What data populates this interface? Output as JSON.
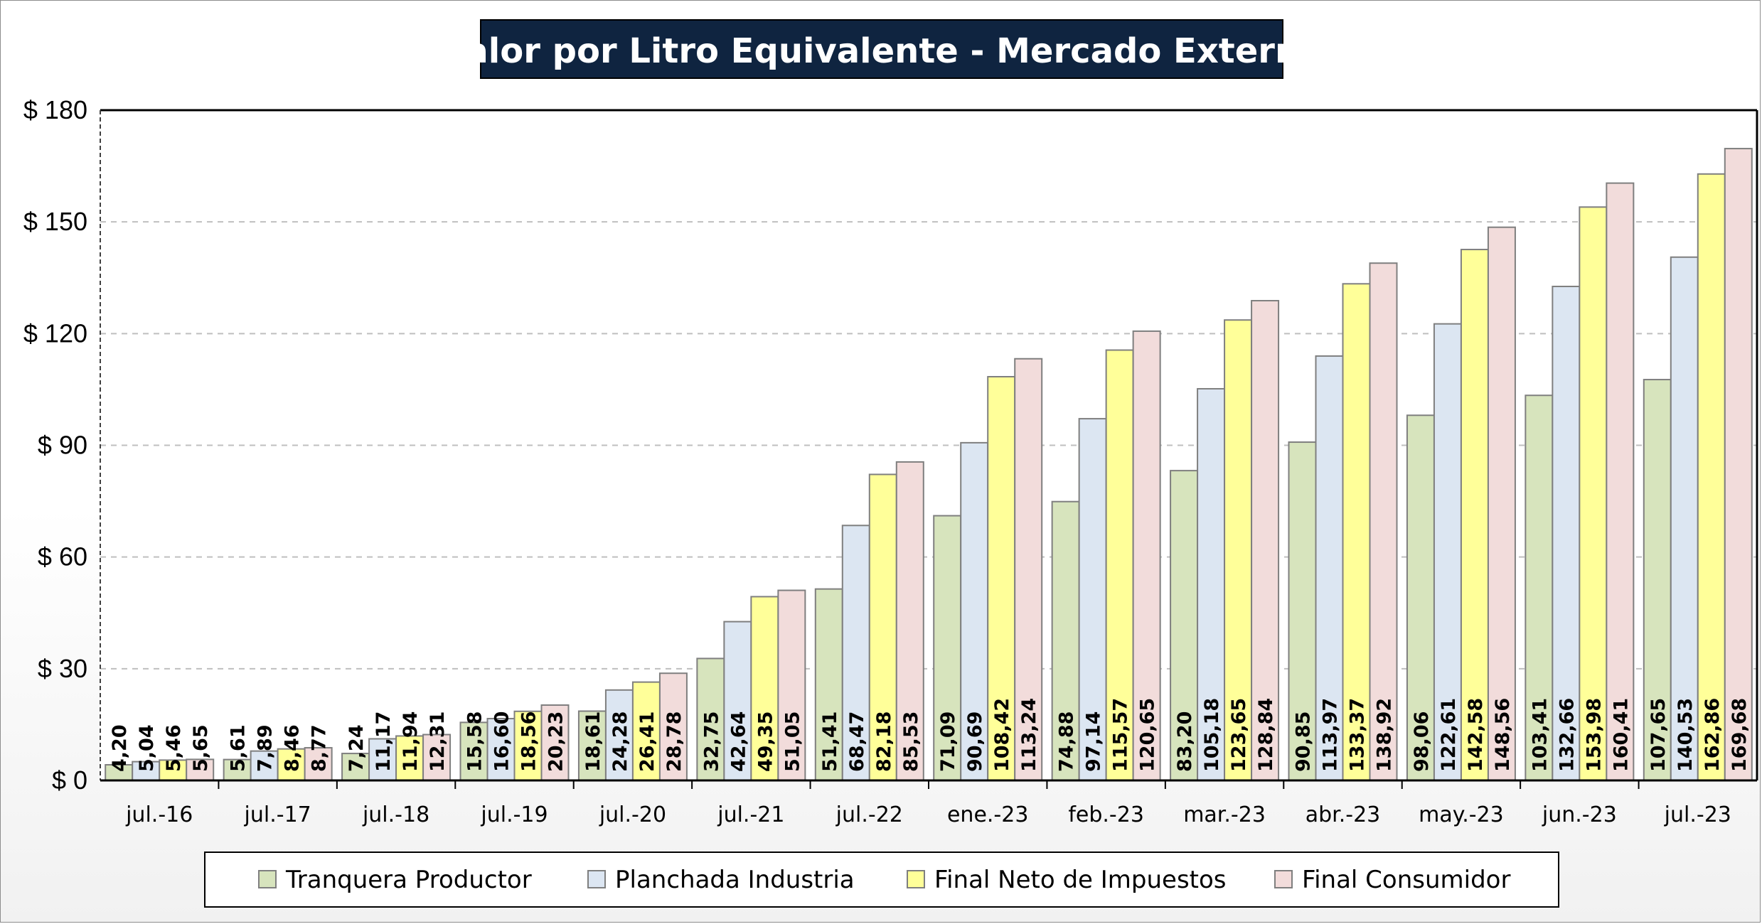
{
  "chart_data": {
    "type": "bar",
    "title": "Valor por Litro Equivalente - Mercado Externo",
    "categories": [
      "jul.-16",
      "jul.-17",
      "jul.-18",
      "jul.-19",
      "jul.-20",
      "jul.-21",
      "jul.-22",
      "ene.-23",
      "feb.-23",
      "mar.-23",
      "abr.-23",
      "may.-23",
      "jun.-23",
      "jul.-23"
    ],
    "series": [
      {
        "name": "Tranquera Productor",
        "color": "#d7e4bd",
        "values": [
          4.2,
          5.61,
          7.24,
          15.58,
          18.61,
          32.75,
          51.41,
          71.09,
          74.88,
          83.2,
          90.85,
          98.06,
          103.41,
          107.65
        ],
        "labels": [
          "4,20",
          "5,61",
          "7,24",
          "15,58",
          "18,61",
          "32,75",
          "51,41",
          "71,09",
          "74,88",
          "83,20",
          "90,85",
          "98,06",
          "103,41",
          "107,65"
        ]
      },
      {
        "name": "Planchada Industria",
        "color": "#dce6f2",
        "values": [
          5.04,
          7.89,
          11.17,
          16.6,
          24.28,
          42.64,
          68.47,
          90.69,
          97.14,
          105.18,
          113.97,
          122.61,
          132.66,
          140.53
        ],
        "labels": [
          "5,04",
          "7,89",
          "11,17",
          "16,60",
          "24,28",
          "42,64",
          "68,47",
          "90,69",
          "97,14",
          "105,18",
          "113,97",
          "122,61",
          "132,66",
          "140,53"
        ]
      },
      {
        "name": "Final Neto de Impuestos",
        "color": "#ffff99",
        "values": [
          5.46,
          8.46,
          11.94,
          18.56,
          26.41,
          49.35,
          82.18,
          108.42,
          115.57,
          123.65,
          133.37,
          142.58,
          153.98,
          162.86
        ],
        "labels": [
          "5,46",
          "8,46",
          "11,94",
          "18,56",
          "26,41",
          "49,35",
          "82,18",
          "108,42",
          "115,57",
          "123,65",
          "133,37",
          "142,58",
          "153,98",
          "162,86"
        ]
      },
      {
        "name": "Final Consumidor",
        "color": "#f2dcdb",
        "values": [
          5.65,
          8.77,
          12.31,
          20.23,
          28.78,
          51.05,
          85.53,
          113.24,
          120.65,
          128.84,
          138.92,
          148.56,
          160.41,
          169.68
        ],
        "labels": [
          "5,65",
          "8,77",
          "12,31",
          "20,23",
          "28,78",
          "51,05",
          "85,53",
          "113,24",
          "120,65",
          "128,84",
          "138,92",
          "148,56",
          "160,41",
          "169,68"
        ]
      }
    ],
    "ylim": [
      0,
      180
    ],
    "yticks": [
      0,
      30,
      60,
      90,
      120,
      150,
      180
    ],
    "ytick_labels": [
      "$ 0",
      "$ 30",
      "$ 60",
      "$ 90",
      "$ 120",
      "$ 150",
      "$ 180"
    ],
    "grid": true,
    "legend_position": "bottom",
    "title_background": "#0f2440",
    "title_color": "#ffffff"
  }
}
